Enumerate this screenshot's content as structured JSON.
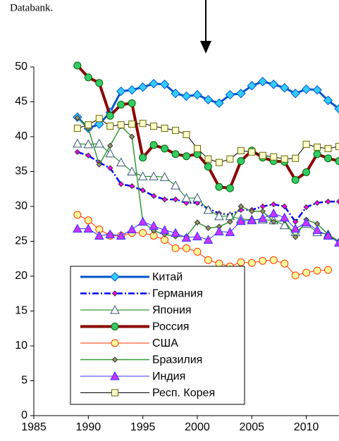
{
  "chart_data": {
    "type": "line",
    "annotation": "Databank.",
    "x": [
      1989,
      1990,
      1991,
      1992,
      1993,
      1994,
      1995,
      1996,
      1997,
      1998,
      1999,
      2000,
      2001,
      2002,
      2003,
      2004,
      2005,
      2006,
      2007,
      2008,
      2009,
      2010,
      2011,
      2012,
      2013
    ],
    "xlim": [
      1985,
      2013
    ],
    "xticks": [
      1985,
      1990,
      1995,
      2000,
      2005,
      2010
    ],
    "ylim": [
      0,
      50
    ],
    "yticks": [
      0,
      5,
      10,
      15,
      20,
      25,
      30,
      35,
      40,
      45,
      50
    ],
    "grid": false,
    "legend": "lower center",
    "series": [
      {
        "name": "Китай",
        "color": "#0055cc",
        "marker_color": "#33ccff",
        "marker": "diamond",
        "line_width": 3,
        "dash": "none",
        "values": [
          42.8,
          41.2,
          41.8,
          43.5,
          46.5,
          46.7,
          47.1,
          47.6,
          47.5,
          46.2,
          45.8,
          46.0,
          45.3,
          44.8,
          46.0,
          46.2,
          47.3,
          47.9,
          47.5,
          47.0,
          46.2,
          46.8,
          46.7,
          45.2,
          44.0
        ]
      },
      {
        "name": "Германия",
        "color": "#0000ff",
        "marker_color": "#ff00ff",
        "marker": "small-diamond",
        "line_width": 2.5,
        "dash": "9 3 2 3",
        "values": [
          37.8,
          37.3,
          36.3,
          35.5,
          33.2,
          32.9,
          32.3,
          31.5,
          31.0,
          31.0,
          30.5,
          30.5,
          29.7,
          29.0,
          28.8,
          29.5,
          29.5,
          30.0,
          30.3,
          30.0,
          27.8,
          29.9,
          30.5,
          30.7,
          30.7
        ]
      },
      {
        "name": "Япония",
        "color": "#008000",
        "marker_color": "#ffffff",
        "marker": "triangle",
        "line_width": 1,
        "dash": "none",
        "values": [
          39.0,
          38.9,
          39.0,
          37.6,
          36.3,
          35.0,
          34.3,
          34.3,
          34.2,
          33.0,
          31.2,
          31.2,
          29.5,
          28.6,
          28.6,
          28.2,
          28.1,
          28.1,
          28.0,
          27.3,
          26.3,
          27.5,
          26.3,
          26.0,
          24.8
        ]
      },
      {
        "name": "Россия",
        "color": "#8b0000",
        "marker_color": "#33cc66",
        "marker": "circle",
        "line_width": 4,
        "dash": "none",
        "values": [
          50.2,
          48.5,
          47.7,
          43.0,
          44.6,
          44.8,
          37.0,
          38.8,
          38.3,
          37.5,
          37.2,
          37.5,
          35.7,
          32.8,
          32.6,
          36.5,
          38.0,
          37.0,
          36.5,
          36.4,
          33.8,
          34.9,
          37.5,
          36.9,
          36.5
        ]
      },
      {
        "name": "США",
        "color": "#ff3300",
        "marker_color": "#ffff99",
        "marker": "circle",
        "line_width": 1,
        "dash": "none",
        "values": [
          28.8,
          28.0,
          26.7,
          25.8,
          25.8,
          26.2,
          26.2,
          25.8,
          25.2,
          24.0,
          24.0,
          23.5,
          22.3,
          21.8,
          21.4,
          22.0,
          21.9,
          22.2,
          22.3,
          21.8,
          20.1,
          20.5,
          20.8,
          20.9,
          null
        ]
      },
      {
        "name": "Бразилия",
        "color": "#339933",
        "marker_color": "#999966",
        "marker": "small-diamond",
        "line_width": 1.5,
        "dash": "none",
        "values": [
          42.7,
          41.2,
          36.0,
          38.7,
          41.5,
          40.0,
          27.8,
          26.5,
          26.0,
          25.7,
          25.7,
          27.7,
          26.9,
          27.1,
          27.8,
          30.0,
          29.3,
          29.3,
          27.8,
          28.0,
          25.6,
          28.1,
          27.5,
          26.0,
          25.0
        ]
      },
      {
        "name": "Индия",
        "color": "#3333ff",
        "marker_color": "#cc33ff",
        "marker": "filled-triangle",
        "line_width": 1,
        "dash": "none",
        "values": [
          26.8,
          26.8,
          25.8,
          26.0,
          25.8,
          26.7,
          27.8,
          27.2,
          26.6,
          26.2,
          25.5,
          25.7,
          25.2,
          26.4,
          26.3,
          27.9,
          28.0,
          28.3,
          29.0,
          28.4,
          26.8,
          27.7,
          26.6,
          25.8,
          24.8
        ]
      },
      {
        "name": "Респ. Корея",
        "color": "#000000",
        "marker_color": "#ffffcc",
        "marker": "square",
        "line_width": 1,
        "dash": "none",
        "values": [
          41.2,
          41.7,
          42.6,
          41.5,
          41.7,
          41.8,
          41.9,
          41.5,
          41.2,
          40.9,
          40.3,
          38.3,
          36.8,
          36.3,
          36.8,
          38.0,
          37.8,
          37.3,
          37.1,
          36.8,
          36.9,
          38.9,
          38.5,
          38.3,
          38.6
        ]
      }
    ]
  }
}
